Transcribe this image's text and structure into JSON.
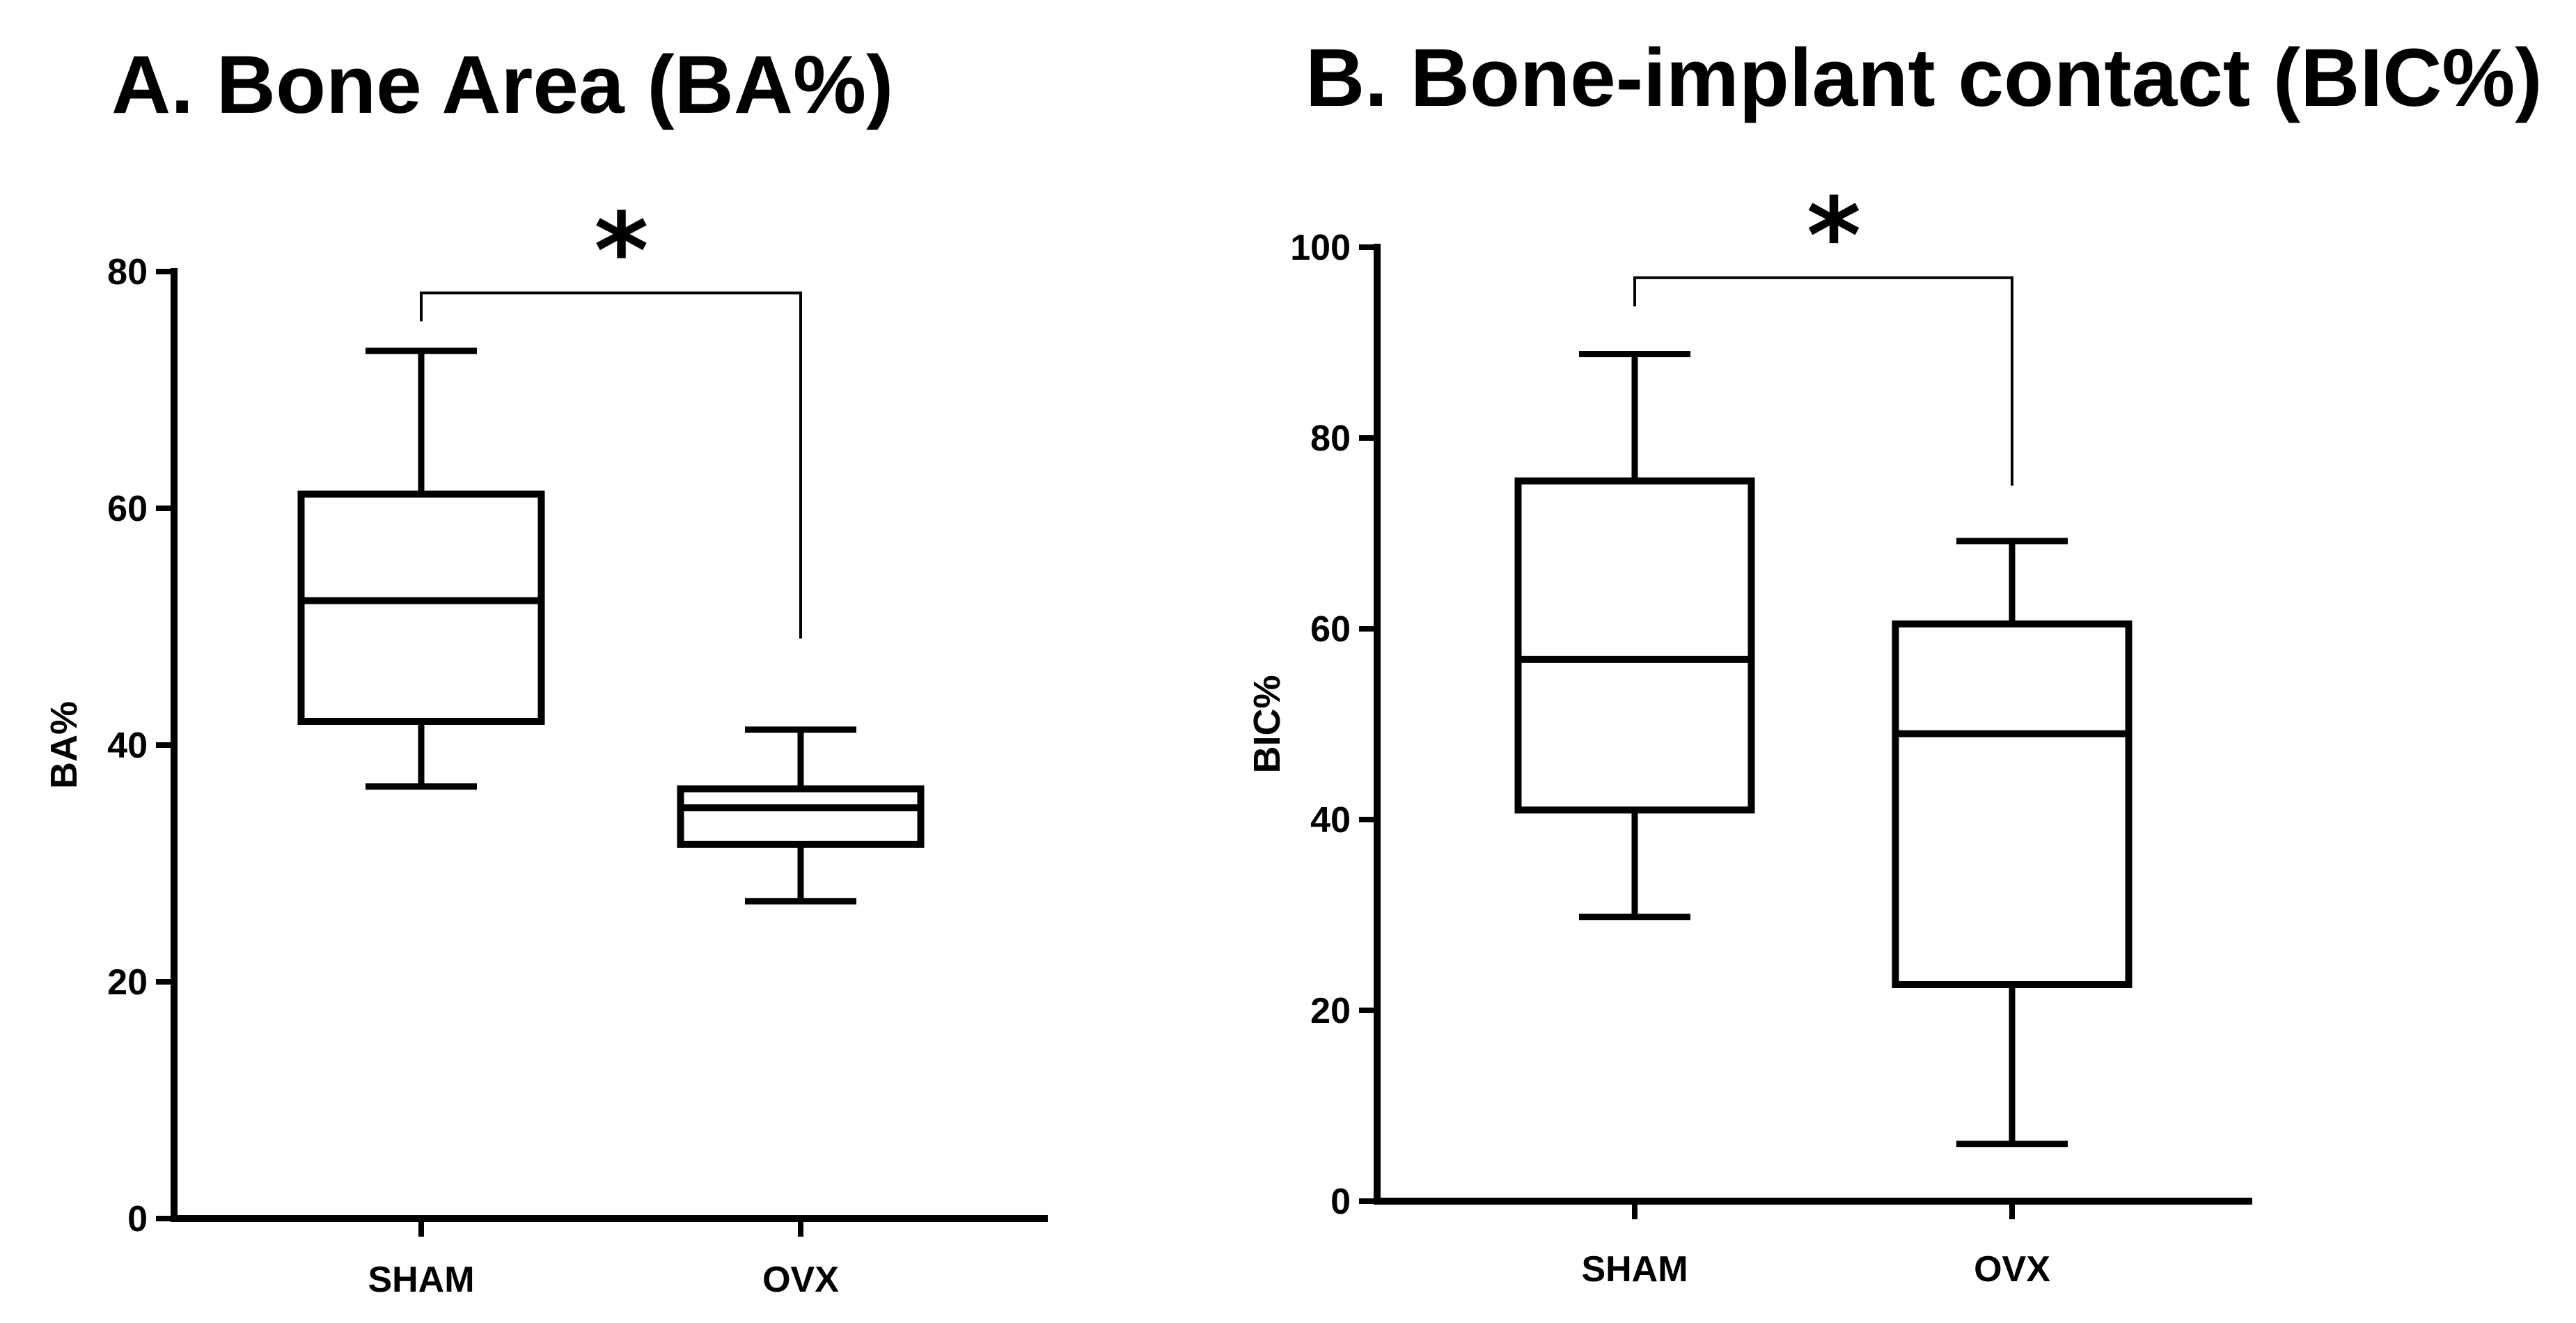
{
  "chart_data": [
    {
      "type": "boxplot",
      "title": "A. Bone Area (BA%)",
      "xlabel": "",
      "ylabel": "BA%",
      "ylim": [
        0,
        80
      ],
      "yticks": [
        0,
        20,
        40,
        60,
        80
      ],
      "grid": false,
      "categories": [
        "SHAM",
        "OVX"
      ],
      "boxes": [
        {
          "name": "SHAM",
          "min": 36.5,
          "q1": 42,
          "median": 52.2,
          "q3": 61.2,
          "max": 73.3
        },
        {
          "name": "OVX",
          "min": 26.8,
          "q1": 31.6,
          "median": 34.7,
          "q3": 36.3,
          "max": 41.3
        }
      ],
      "significance": {
        "from": "SHAM",
        "to": "OVX",
        "label": "*",
        "y": 78.2,
        "left_drop_to": 75.8,
        "right_drop_to": 49
      }
    },
    {
      "type": "boxplot",
      "title": "B. Bone-implant contact (BIC%)",
      "xlabel": "",
      "ylabel": "BIC%",
      "ylim": [
        0,
        100
      ],
      "yticks": [
        0,
        20,
        40,
        60,
        80,
        100
      ],
      "grid": false,
      "categories": [
        "SHAM",
        "OVX"
      ],
      "boxes": [
        {
          "name": "SHAM",
          "min": 29.8,
          "q1": 41,
          "median": 56.8,
          "q3": 75.5,
          "max": 88.8
        },
        {
          "name": "OVX",
          "min": 6,
          "q1": 22.7,
          "median": 49,
          "q3": 60.5,
          "max": 69.2
        }
      ],
      "significance": {
        "from": "SHAM",
        "to": "OVX",
        "label": "*",
        "y": 96.8,
        "left_drop_to": 93.8,
        "right_drop_to": 75
      }
    }
  ]
}
